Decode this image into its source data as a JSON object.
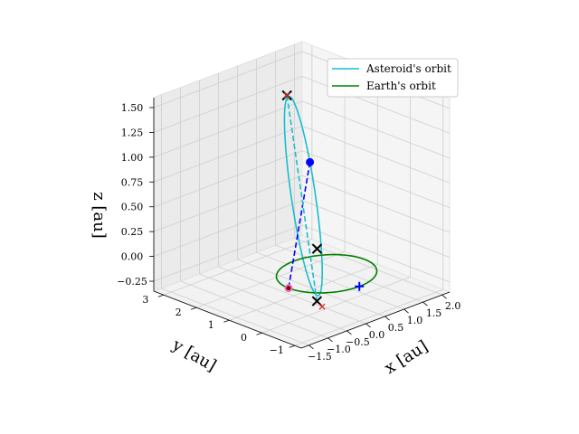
{
  "chart_data": {
    "type": "line3d",
    "view": {
      "elev": 20,
      "azim": -135
    },
    "xlabel": "x [au]",
    "ylabel": "y [au]",
    "zlabel": "z [au]",
    "xlim": [
      -1.7,
      2.2
    ],
    "ylim": [
      -1.2,
      3.3
    ],
    "zlim": [
      -0.35,
      1.6
    ],
    "x_ticks": [
      "-1.5",
      "-1.0",
      "-0.5",
      "0.0",
      "0.5",
      "1.0",
      "1.5",
      "2.0"
    ],
    "y_ticks": [
      "-1",
      "0",
      "1",
      "2",
      "3"
    ],
    "z_ticks": [
      "-0.25",
      "0.00",
      "0.25",
      "0.50",
      "0.75",
      "1.00",
      "1.25",
      "1.50"
    ],
    "grid": true,
    "legend": {
      "position": "top-right",
      "entries": [
        "Asteroid's orbit",
        "Earth's orbit"
      ]
    },
    "series": [
      {
        "name": "Asteroid's orbit",
        "color": "#17becf",
        "kind": "ellipse",
        "center": [
          0.25,
          1.0,
          0.62
        ],
        "u": [
          1.25,
          1.25,
          0.0
        ],
        "v": [
          -0.25,
          0.25,
          0.95
        ]
      },
      {
        "name": "Earth's orbit",
        "color": "#008000",
        "kind": "ellipse",
        "center": [
          0.0,
          0.0,
          0.0
        ],
        "u": [
          1.0,
          0.0,
          0.0
        ],
        "v": [
          0.0,
          1.0,
          0.0
        ]
      }
    ],
    "markers": [
      {
        "label": "asteroid-point",
        "symbol": "dot",
        "color": "#0000ff",
        "pos": [
          1.5,
          2.25,
          0.62
        ]
      },
      {
        "label": "earth-point",
        "symbol": "dot",
        "color": "#e377c2",
        "pos": [
          -1.0,
          0.0,
          0.0
        ]
      },
      {
        "label": "earth-point-overlay",
        "symbol": "dot",
        "color": "#8b0000",
        "pos": [
          -1.0,
          0.0,
          0.0
        ],
        "small": true
      },
      {
        "label": "plus-marker",
        "symbol": "plus",
        "color": "#0000ff",
        "pos": [
          0.0,
          -1.0,
          0.0
        ]
      },
      {
        "label": "x-marker-top",
        "symbol": "x",
        "color": "#000000",
        "pos": [
          0.25,
          1.5,
          1.57
        ]
      },
      {
        "label": "x-marker-top-red",
        "symbol": "x",
        "color": "#d62728",
        "pos": [
          0.25,
          1.5,
          1.57
        ],
        "small": true
      },
      {
        "label": "x-marker-center",
        "symbol": "x",
        "color": "#000000",
        "pos": [
          0.05,
          0.35,
          0.2
        ]
      },
      {
        "label": "x-marker-bottom",
        "symbol": "x",
        "color": "#000000",
        "pos": [
          -0.9,
          -0.75,
          -0.05
        ]
      },
      {
        "label": "x-marker-bottom-red",
        "symbol": "x",
        "color": "#d62728",
        "pos": [
          -0.85,
          -0.85,
          -0.1
        ],
        "small": true
      }
    ],
    "dashed_lines": [
      {
        "label": "asteroid-to-earth-dash",
        "color": "#0000ff",
        "from": [
          1.5,
          2.25,
          0.62
        ],
        "to": [
          -1.0,
          0.0,
          0.0
        ]
      },
      {
        "label": "top-to-bottom-dash",
        "color": "#17becf",
        "from": [
          0.25,
          1.5,
          1.57
        ],
        "to": [
          -0.9,
          -0.75,
          -0.05
        ]
      }
    ]
  }
}
